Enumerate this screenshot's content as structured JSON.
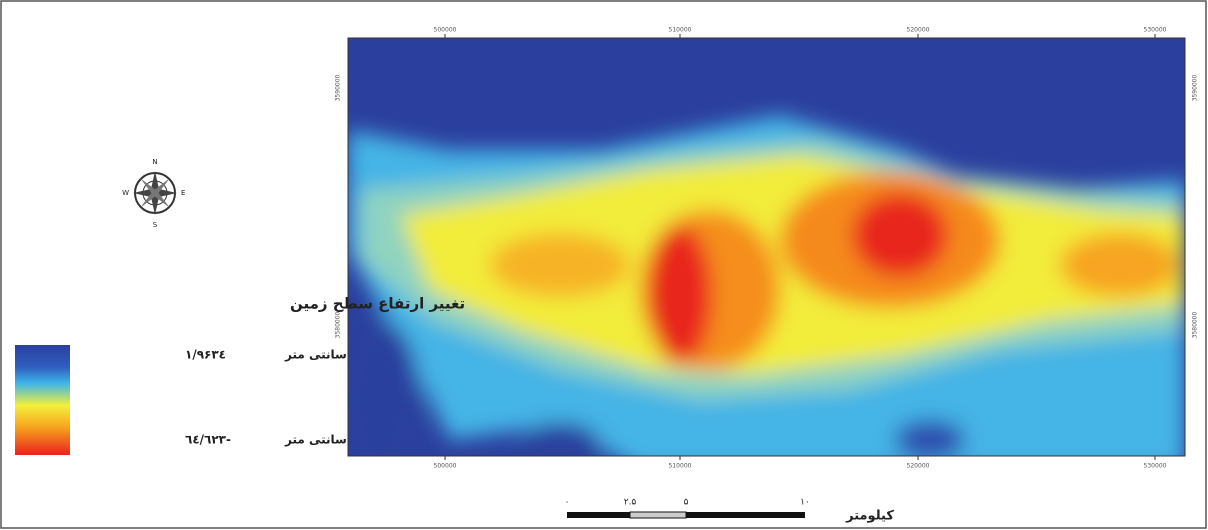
{
  "legend": {
    "title": "تغییر ارتفاع سطح زمین",
    "items": [
      {
        "unit": "سانتی متر",
        "value": "۱/۹۶۳٤"
      },
      {
        "unit": "سانتی متر",
        "value": "-٦٤/٦٢٣"
      }
    ]
  },
  "compass": {
    "n": "N",
    "e": "E",
    "s": "S",
    "w": "W"
  },
  "map": {
    "top_ticks": [
      "500000",
      "510000",
      "520000",
      "530000"
    ],
    "bottom_ticks": [
      "500000",
      "510000",
      "520000",
      "530000"
    ],
    "left_ticks": [
      "3590000",
      "3580000"
    ],
    "right_ticks": [
      "3590000",
      "3580000"
    ]
  },
  "scale_bar": {
    "ticks": [
      "۰",
      "۲.۵",
      "۵",
      "۱۰"
    ],
    "unit": "کیلومتر"
  }
}
